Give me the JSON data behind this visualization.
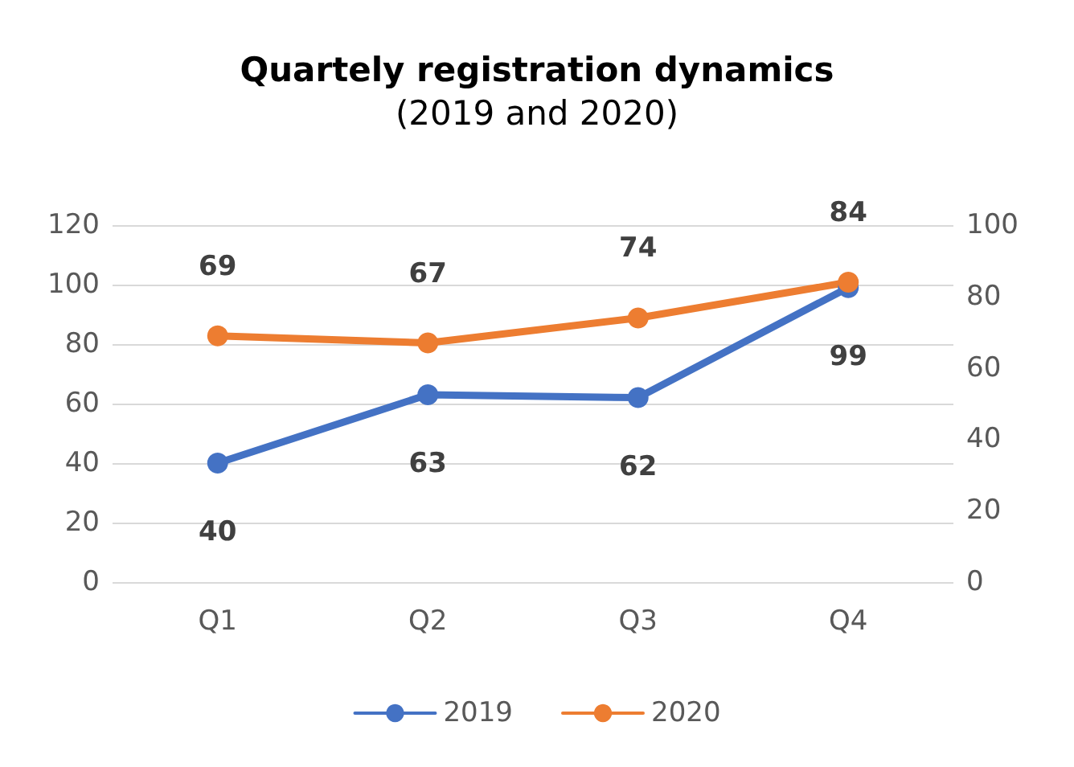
{
  "chart_data": {
    "type": "line",
    "title": "Quartely registration dynamics",
    "subtitle": "(2019 and 2020)",
    "categories": [
      "Q1",
      "Q2",
      "Q3",
      "Q4"
    ],
    "series": [
      {
        "name": "2019",
        "color": "#4472c4",
        "values": [
          40,
          63,
          62,
          99
        ]
      },
      {
        "name": "2020",
        "color": "#ed7d31",
        "values": [
          69,
          67,
          74,
          84
        ],
        "axis": "y2"
      }
    ],
    "ylim": [
      0,
      120
    ],
    "yticks": [
      0,
      20,
      40,
      60,
      80,
      100,
      120
    ],
    "y2lim": [
      0,
      100
    ],
    "y2ticks": [
      0,
      20,
      40,
      60,
      80,
      100
    ],
    "grid": "y",
    "legend": "bottom",
    "marker": "circle",
    "line_style": "solid",
    "data_labels": true
  }
}
